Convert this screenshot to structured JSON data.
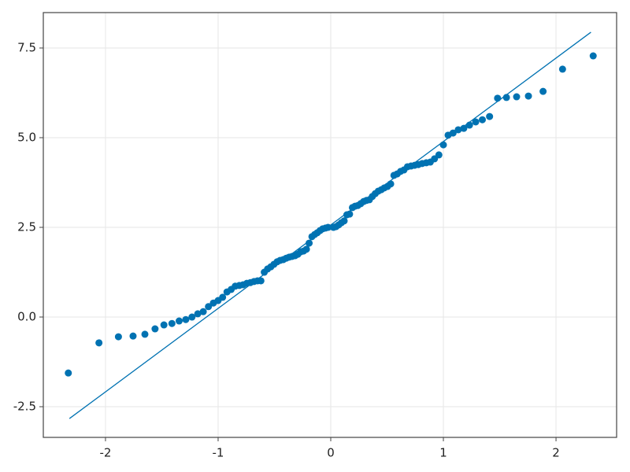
{
  "chart_data": {
    "type": "scatter",
    "x": [
      -2.33,
      -2.058,
      -1.885,
      -1.755,
      -1.65,
      -1.56,
      -1.481,
      -1.41,
      -1.346,
      -1.287,
      -1.232,
      -1.181,
      -1.132,
      -1.086,
      -1.042,
      -1.0,
      -0.96,
      -0.921,
      -0.884,
      -0.848,
      -0.812,
      -0.778,
      -0.745,
      -0.713,
      -0.681,
      -0.65,
      -0.62,
      -0.59,
      -0.561,
      -0.532,
      -0.504,
      -0.476,
      -0.449,
      -0.422,
      -0.395,
      -0.369,
      -0.343,
      -0.317,
      -0.292,
      -0.266,
      -0.241,
      -0.216,
      -0.192,
      -0.167,
      -0.143,
      -0.119,
      -0.095,
      -0.071,
      -0.047,
      -0.024,
      0.024,
      0.047,
      0.071,
      0.095,
      0.119,
      0.143,
      0.167,
      0.192,
      0.216,
      0.241,
      0.266,
      0.292,
      0.317,
      0.343,
      0.369,
      0.395,
      0.422,
      0.449,
      0.476,
      0.504,
      0.532,
      0.561,
      0.59,
      0.62,
      0.65,
      0.681,
      0.713,
      0.745,
      0.778,
      0.812,
      0.848,
      0.884,
      0.921,
      0.96,
      1.0,
      1.042,
      1.086,
      1.132,
      1.181,
      1.232,
      1.287,
      1.346,
      1.41,
      1.481,
      1.56,
      1.65,
      1.755,
      1.885,
      2.058,
      2.33
    ],
    "values": [
      -1.56,
      -0.72,
      -0.55,
      -0.53,
      -0.48,
      -0.33,
      -0.22,
      -0.18,
      -0.11,
      -0.07,
      0.0,
      0.09,
      0.15,
      0.29,
      0.39,
      0.46,
      0.55,
      0.7,
      0.77,
      0.86,
      0.88,
      0.9,
      0.94,
      0.96,
      0.99,
      1.01,
      1.01,
      1.25,
      1.34,
      1.4,
      1.47,
      1.54,
      1.58,
      1.6,
      1.64,
      1.67,
      1.69,
      1.71,
      1.75,
      1.82,
      1.84,
      1.89,
      2.06,
      2.24,
      2.3,
      2.35,
      2.41,
      2.46,
      2.48,
      2.5,
      2.5,
      2.52,
      2.57,
      2.63,
      2.68,
      2.85,
      2.87,
      3.05,
      3.09,
      3.11,
      3.16,
      3.22,
      3.25,
      3.27,
      3.36,
      3.44,
      3.51,
      3.55,
      3.6,
      3.64,
      3.71,
      3.95,
      3.99,
      4.06,
      4.1,
      4.19,
      4.21,
      4.23,
      4.25,
      4.28,
      4.3,
      4.32,
      4.41,
      4.52,
      4.8,
      5.07,
      5.13,
      5.22,
      5.26,
      5.35,
      5.44,
      5.5,
      5.59,
      6.1,
      6.12,
      6.14,
      6.16,
      6.29,
      6.91,
      7.28
    ],
    "color": "#0072b2",
    "reference_line": {
      "x": [
        -2.32,
        2.31
      ],
      "values": [
        -2.83,
        7.94
      ]
    },
    "xlim": [
      -2.552,
      2.538
    ],
    "ylim": [
      -3.355,
      8.487
    ],
    "xticks": [
      -2,
      -1,
      0,
      1,
      2
    ],
    "yticks": [
      {
        "value": -2.5,
        "label": "-2.5"
      },
      {
        "value": 0,
        "label": "0.0"
      },
      {
        "value": 2.5,
        "label": "2.5"
      },
      {
        "value": 5,
        "label": "5.0"
      },
      {
        "value": 7.5,
        "label": "7.5"
      }
    ],
    "grid": true
  }
}
